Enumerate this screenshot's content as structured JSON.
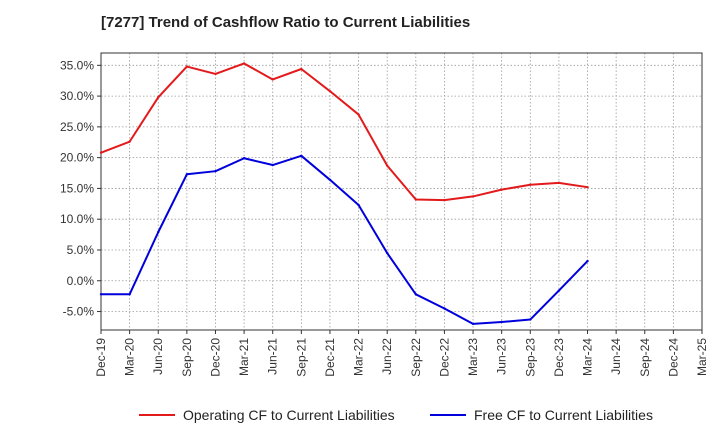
{
  "chart_data": {
    "type": "line",
    "title": "[7277]  Trend of Cashflow Ratio to Current Liabilities",
    "x": [
      "Dec-19",
      "Mar-20",
      "Jun-20",
      "Sep-20",
      "Dec-20",
      "Mar-21",
      "Jun-21",
      "Sep-21",
      "Dec-21",
      "Mar-22",
      "Jun-22",
      "Sep-22",
      "Dec-22",
      "Mar-23",
      "Jun-23",
      "Sep-23",
      "Dec-23",
      "Mar-24",
      "Jun-24",
      "Sep-24",
      "Dec-24",
      "Mar-25"
    ],
    "ylim": [
      -8,
      37
    ],
    "yticks": [
      -5,
      0,
      5,
      10,
      15,
      20,
      25,
      30,
      35
    ],
    "ytick_labels": [
      "-5.0%",
      "0.0%",
      "5.0%",
      "10.0%",
      "15.0%",
      "20.0%",
      "25.0%",
      "30.0%",
      "35.0%"
    ],
    "grid": true,
    "legend_position": "bottom",
    "series": [
      {
        "name": "Operating CF to Current Liabilities",
        "color": "#e31a1c",
        "values": [
          20.8,
          22.6,
          29.8,
          34.8,
          33.6,
          35.3,
          32.7,
          34.4,
          30.8,
          27.0,
          18.7,
          13.2,
          13.1,
          13.7,
          14.8,
          15.6,
          15.9,
          15.2,
          null,
          null,
          null,
          null
        ]
      },
      {
        "name": "Free CF to Current Liabilities",
        "color": "#0000dd",
        "values": [
          -2.2,
          -2.2,
          7.9,
          17.3,
          17.8,
          19.9,
          18.8,
          20.3,
          16.4,
          12.3,
          4.5,
          -2.2,
          -4.5,
          -7.0,
          -6.7,
          -6.3,
          -1.6,
          3.2,
          null,
          null,
          null,
          null
        ]
      }
    ]
  }
}
